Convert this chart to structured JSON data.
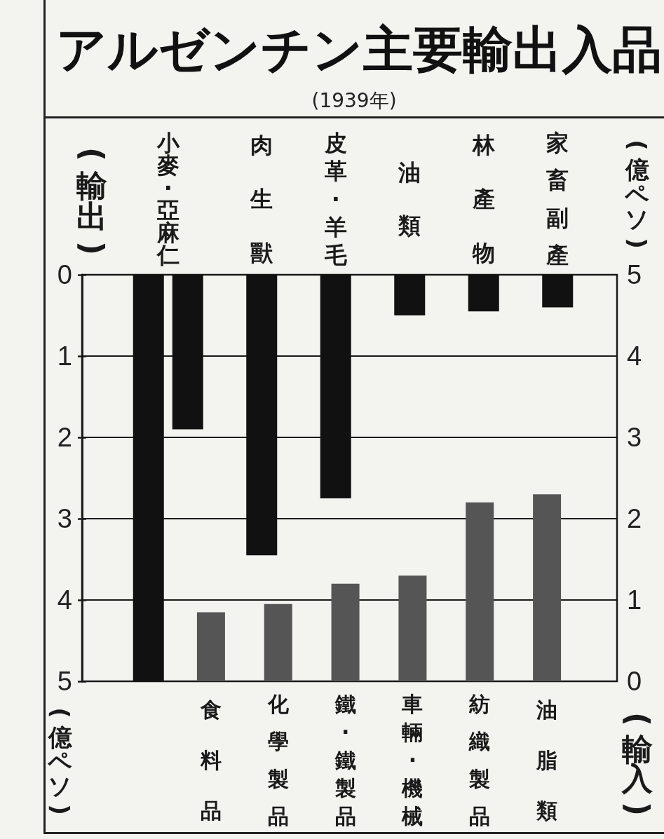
{
  "chart_data": [
    {
      "type": "bar",
      "title": "アルゼンチン主要輸出入品",
      "subtitle": "(1939年)",
      "ylabel": "(輸出)",
      "annotations": [
        "(億ペソ)"
      ],
      "categories": [
        "小麥·亞麻仁",
        "肉生獸",
        "皮革·羊毛",
        "油類",
        "林產物",
        "家畜副產"
      ],
      "series": [
        {
          "color": "#111111",
          "values": [
            5,
            null,
            null,
            null,
            null,
            null
          ]
        },
        {
          "color": "#111111",
          "values": [
            1.9,
            3.45,
            2.75,
            0.5,
            0.45,
            0.4
          ]
        }
      ],
      "ylim": [
        5,
        0
      ],
      "yticks": [
        0,
        1,
        2,
        3,
        4,
        5
      ],
      "grid": "y"
    },
    {
      "type": "bar",
      "ylabel": "(輸入)",
      "annotations": [
        "(億ペソ)"
      ],
      "categories": [
        "食料品",
        "化學製品",
        "鐵·鐵製品",
        "車輛·機械",
        "紡織製品",
        "油脂類"
      ],
      "values": [
        0.85,
        0.95,
        1.2,
        1.3,
        2.2,
        2.3
      ],
      "color": "#555555",
      "ylim": [
        0,
        5
      ],
      "yticks": [
        0,
        1,
        2,
        3,
        4,
        5
      ]
    }
  ]
}
